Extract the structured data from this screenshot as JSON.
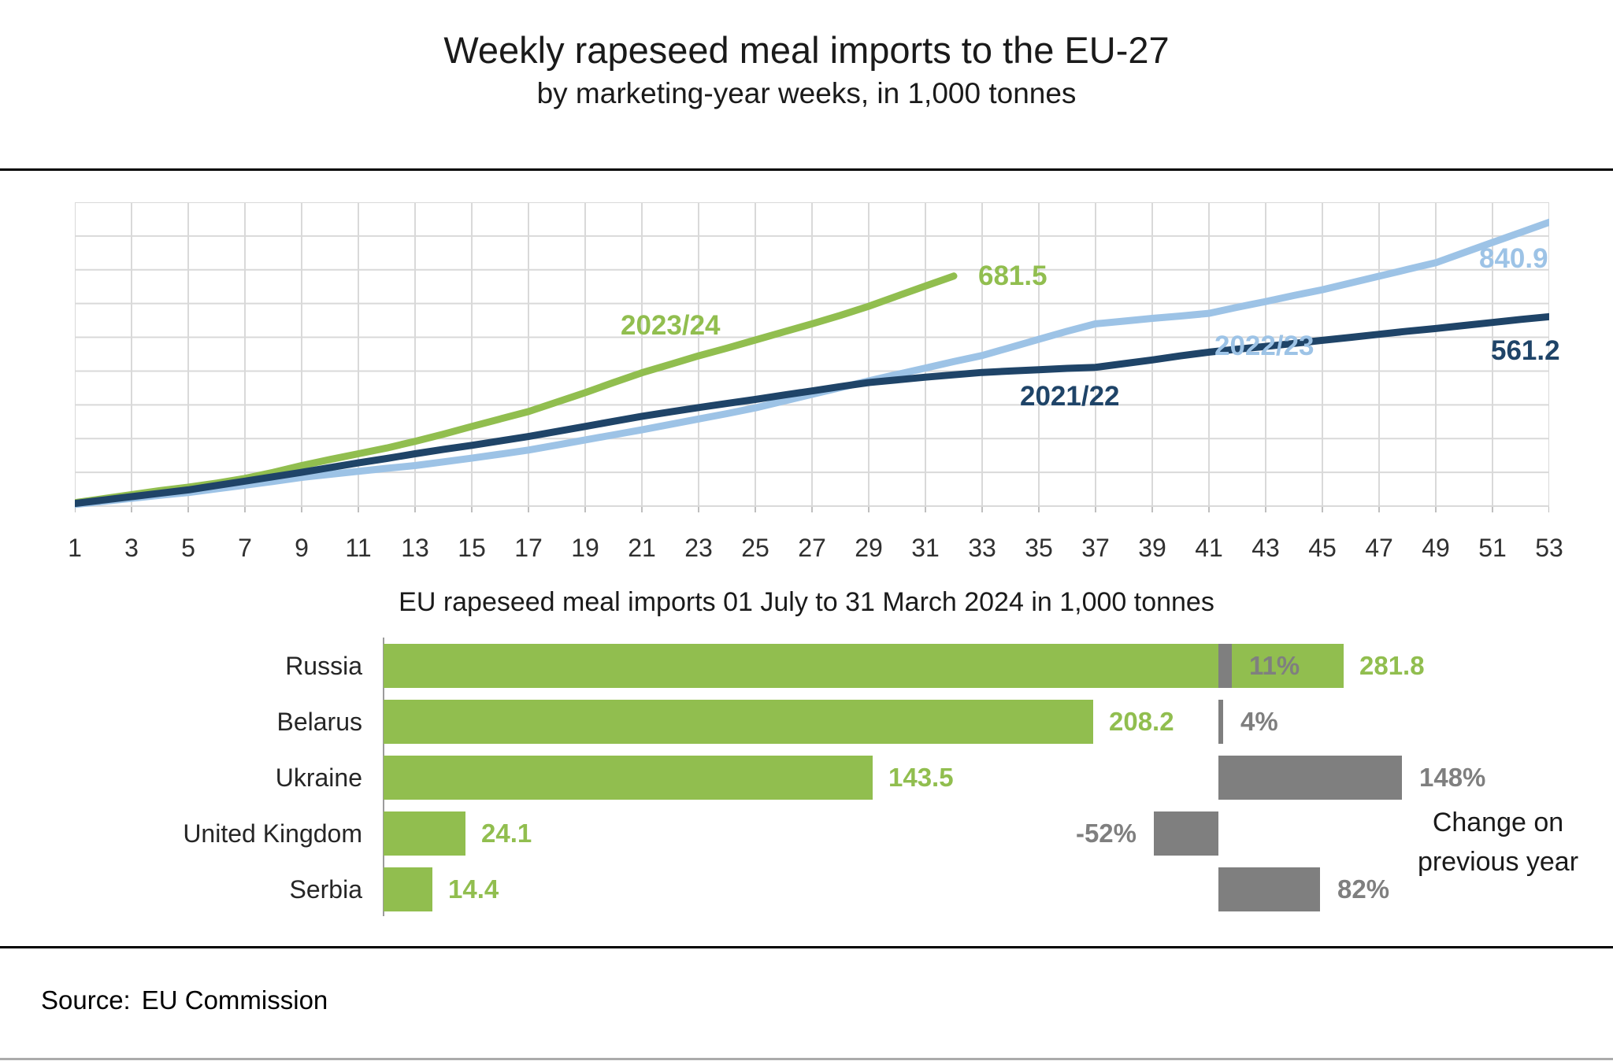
{
  "title": "Weekly rapeseed meal imports to the EU-27",
  "subtitle": "by marketing-year weeks, in 1,000 tonnes",
  "source_label": "Source:",
  "source_value": "EU Commission",
  "colors": {
    "green": "#91BE4F",
    "light_blue": "#9DC3E6",
    "dark_blue": "#1F4468",
    "gray": "#7F7F7F",
    "gridline": "#D9D9D9"
  },
  "chart_data": [
    {
      "type": "line",
      "title": "Weekly rapeseed meal imports to the EU-27",
      "subtitle": "by marketing-year weeks, in 1,000 tonnes",
      "xlim": [
        1,
        53
      ],
      "ylim": [
        0,
        900
      ],
      "grid": true,
      "y_gridline_step": 100,
      "x_gridline_step_weeks": 2,
      "x_tick_labels": [
        "1",
        "3",
        "5",
        "7",
        "9",
        "11",
        "13",
        "15",
        "17",
        "19",
        "21",
        "23",
        "25",
        "27",
        "29",
        "31",
        "33",
        "35",
        "37",
        "39",
        "41",
        "43",
        "45",
        "47",
        "49",
        "51",
        "53"
      ],
      "series": [
        {
          "name": "2023/24",
          "color": "#91BE4F",
          "end_label": "681.5",
          "start_week": 1,
          "values": [
            10,
            22,
            34,
            46,
            56,
            68,
            82,
            100,
            120,
            138,
            155,
            172,
            192,
            213,
            236,
            258,
            280,
            308,
            336,
            366,
            395,
            420,
            445,
            468,
            492,
            516,
            540,
            565,
            592,
            622,
            652,
            681.5
          ]
        },
        {
          "name": "2022/23",
          "color": "#9DC3E6",
          "end_label": "840.9",
          "start_week": 1,
          "values": [
            5,
            14,
            23,
            32,
            40,
            51,
            62,
            73,
            85,
            94,
            103,
            112,
            120,
            131,
            142,
            154,
            166,
            181,
            196,
            211,
            226,
            242,
            258,
            274,
            291,
            311,
            331,
            351,
            371,
            390,
            409,
            428,
            446,
            470,
            494,
            518,
            540,
            548,
            556,
            563,
            571,
            589,
            606,
            624,
            641,
            661,
            681,
            701,
            721,
            751,
            781,
            811,
            840.9
          ]
        },
        {
          "name": "2021/22",
          "color": "#1F4468",
          "end_label": "561.2",
          "start_week": 1,
          "values": [
            8,
            18,
            28,
            38,
            48,
            61,
            74,
            87,
            100,
            114,
            128,
            141,
            155,
            168,
            180,
            193,
            206,
            221,
            236,
            251,
            266,
            279,
            292,
            304,
            316,
            329,
            341,
            354,
            366,
            374,
            382,
            389,
            396,
            400,
            404,
            408,
            411,
            422,
            433,
            445,
            456,
            465,
            473,
            482,
            491,
            500,
            509,
            518,
            526,
            535,
            544,
            553,
            561.2
          ]
        }
      ]
    },
    {
      "type": "bar",
      "title": "EU rapeseed meal imports 01 July to 31 March 2024 in 1,000 tonnes",
      "categories": [
        "Russia",
        "Belarus",
        "Ukraine",
        "United Kingdom",
        "Serbia"
      ],
      "values": [
        281.8,
        208.2,
        143.5,
        24.1,
        14.4
      ],
      "value_labels": [
        "281.8",
        "208.2",
        "143.5",
        "24.1",
        "14.4"
      ],
      "change_pct": [
        11,
        4,
        148,
        -52,
        82
      ],
      "change_labels": [
        "11%",
        "4%",
        "148%",
        "-52%",
        "82%"
      ],
      "annotation": "Change on previous year",
      "bar_color": "#91BE4F",
      "change_color": "#7F7F7F"
    }
  ]
}
